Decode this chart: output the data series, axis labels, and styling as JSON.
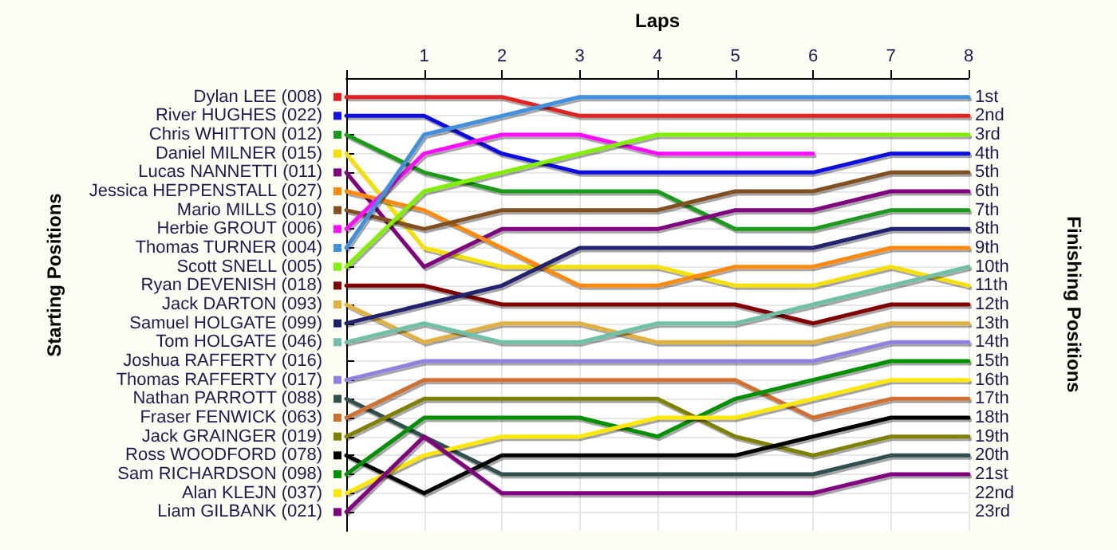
{
  "chart_data": {
    "type": "line",
    "xlabel": "Laps",
    "ylabel": "Finishing Positions",
    "legend_title": "Starting Positions",
    "legend": "left",
    "x": [
      0,
      1,
      2,
      3,
      4,
      5,
      6,
      7,
      8
    ],
    "xlim": [
      0,
      8
    ],
    "xticks": [
      {
        "value": 0,
        "label": null
      },
      1,
      2,
      3,
      4,
      5,
      6,
      7,
      8
    ],
    "ylim": [
      24,
      0
    ],
    "yticks": [
      {
        "value": 1,
        "label": "1st"
      },
      {
        "value": 2,
        "label": "2nd"
      },
      {
        "value": 3,
        "label": "3rd"
      },
      {
        "value": 4,
        "label": "4th"
      },
      {
        "value": 5,
        "label": "5th"
      },
      {
        "value": 6,
        "label": "6th"
      },
      {
        "value": 7,
        "label": "7th"
      },
      {
        "value": 8,
        "label": "8th"
      },
      {
        "value": 9,
        "label": "9th"
      },
      {
        "value": 10,
        "label": "10th"
      },
      {
        "value": 11,
        "label": "11th"
      },
      {
        "value": 12,
        "label": "12th"
      },
      {
        "value": 13,
        "label": "13th"
      },
      {
        "value": 14,
        "label": "14th"
      },
      {
        "value": 15,
        "label": "15th"
      },
      {
        "value": 16,
        "label": "16th"
      },
      {
        "value": 17,
        "label": "17th"
      },
      {
        "value": 18,
        "label": "18th"
      },
      {
        "value": 19,
        "label": "19th"
      },
      {
        "value": 20,
        "label": "20th"
      },
      {
        "value": 21,
        "label": "21st"
      },
      {
        "value": 22,
        "label": "22nd"
      },
      {
        "value": 23,
        "label": "23rd"
      }
    ],
    "series": [
      {
        "name": "Dylan LEE (008)",
        "color": "#e02020",
        "values": [
          1,
          1,
          1,
          2,
          2,
          2,
          2,
          2,
          2
        ]
      },
      {
        "name": "River HUGHES (022)",
        "color": "#1010e0",
        "values": [
          2,
          2,
          4,
          5,
          5,
          5,
          5,
          4,
          4
        ]
      },
      {
        "name": "Chris WHITTON (012)",
        "color": "#1a9a1a",
        "values": [
          3,
          5,
          6,
          6,
          6,
          8,
          8,
          7,
          7
        ]
      },
      {
        "name": "Daniel MILNER (015)",
        "color": "#f5e000",
        "values": [
          4,
          9,
          10,
          10,
          10,
          11,
          11,
          10,
          11
        ]
      },
      {
        "name": "Lucas NANNETTI (011)",
        "color": "#800080",
        "values": [
          5,
          10,
          8,
          8,
          8,
          7,
          7,
          6,
          6
        ]
      },
      {
        "name": "Jessica HEPPENSTALL (027)",
        "color": "#ff8a10",
        "values": [
          6,
          7,
          9,
          11,
          11,
          10,
          10,
          9,
          9
        ]
      },
      {
        "name": "Mario MILLS (010)",
        "color": "#805020",
        "values": [
          7,
          8,
          7,
          7,
          7,
          6,
          6,
          5,
          5
        ]
      },
      {
        "name": "Herbie GROUT (006)",
        "color": "#ff10ff",
        "values": [
          8,
          4,
          3,
          3,
          4,
          4,
          4,
          null,
          null
        ]
      },
      {
        "name": "Thomas TURNER (004)",
        "color": "#4090e0",
        "values": [
          9,
          3,
          2,
          1,
          1,
          1,
          1,
          1,
          1
        ]
      },
      {
        "name": "Scott SNELL (005)",
        "color": "#80f000",
        "values": [
          10,
          6,
          5,
          4,
          3,
          3,
          3,
          3,
          3
        ]
      },
      {
        "name": "Ryan DEVENISH (018)",
        "color": "#800000",
        "values": [
          11,
          11,
          12,
          12,
          12,
          12,
          13,
          12,
          12
        ]
      },
      {
        "name": "Jack DARTON (093)",
        "color": "#e0b040",
        "values": [
          12,
          14,
          13,
          13,
          14,
          14,
          14,
          13,
          13
        ]
      },
      {
        "name": "Samuel HOLGATE (099)",
        "color": "#202070",
        "values": [
          13,
          12,
          11,
          9,
          9,
          9,
          9,
          8,
          8
        ]
      },
      {
        "name": "Tom HOLGATE (046)",
        "color": "#70c0a8",
        "values": [
          14,
          13,
          14,
          14,
          13,
          13,
          12,
          11,
          10
        ]
      },
      {
        "name": "Joshua RAFFERTY (016)",
        "values": [
          null,
          null,
          null,
          null,
          null,
          null,
          null,
          null,
          null
        ]
      },
      {
        "name": "Thomas RAFFERTY (017)",
        "color": "#9080e0",
        "values": [
          16,
          15,
          15,
          15,
          15,
          15,
          15,
          14,
          14
        ]
      },
      {
        "name": "Nathan PARROTT (088)",
        "color": "#305050",
        "values": [
          17,
          19,
          21,
          21,
          21,
          21,
          21,
          20,
          20
        ]
      },
      {
        "name": "Fraser FENWICK (063)",
        "color": "#d07030",
        "values": [
          18,
          16,
          16,
          16,
          16,
          16,
          18,
          17,
          17
        ]
      },
      {
        "name": "Jack GRAINGER (019)",
        "color": "#808000",
        "values": [
          19,
          17,
          17,
          17,
          17,
          19,
          20,
          19,
          19
        ]
      },
      {
        "name": "Ross WOODFORD (078)",
        "color": "#000000",
        "values": [
          20,
          22,
          20,
          20,
          20,
          20,
          19,
          18,
          18
        ]
      },
      {
        "name": "Sam RICHARDSON (098)",
        "color": "#009000",
        "values": [
          21,
          18,
          18,
          18,
          19,
          17,
          16,
          15,
          15
        ]
      },
      {
        "name": "Alan KLEJN (037)",
        "color": "#ffe800",
        "values": [
          22,
          20,
          19,
          19,
          18,
          18,
          17,
          16,
          16
        ]
      },
      {
        "name": "Liam GILBANK (021)",
        "color": "#800080",
        "values": [
          23,
          19,
          22,
          22,
          22,
          22,
          22,
          21,
          21
        ]
      }
    ],
    "grid": true,
    "marker": "none",
    "line_style": "solid"
  }
}
